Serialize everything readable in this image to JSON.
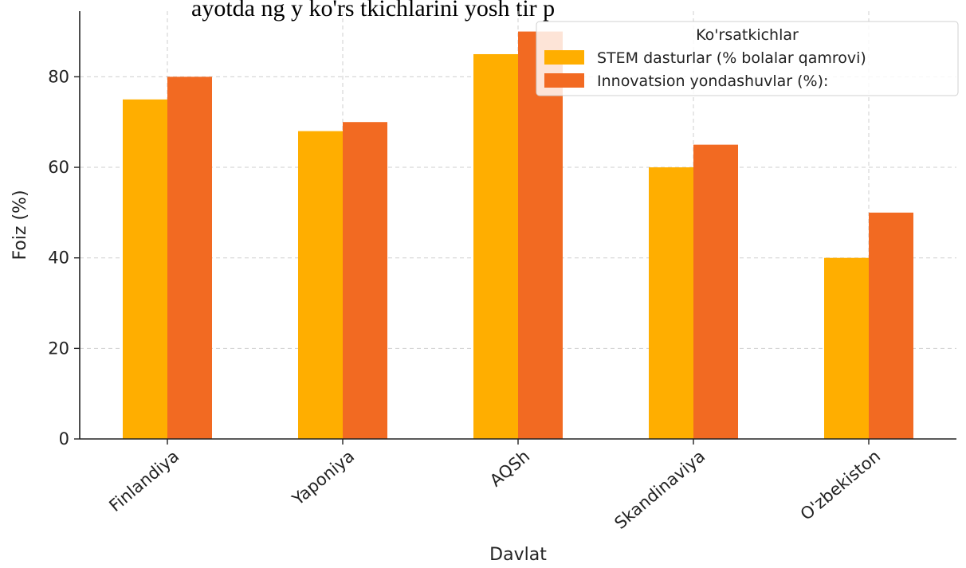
{
  "header": {
    "clipped_title": "ayotda ng y ko'rs tkichlarini yosh tir p"
  },
  "chart_data": {
    "type": "bar",
    "xlabel": "Davlat",
    "ylabel": "Foiz (%)",
    "categories": [
      "Finlandiya",
      "Yaponiya",
      "AQSh",
      "Skandinaviya",
      "O'zbekiston"
    ],
    "series": [
      {
        "name": "STEM dasturlar (% bolalar qamrovi)",
        "values": [
          75,
          68,
          85,
          60,
          40
        ],
        "color": "#FFAE00"
      },
      {
        "name": "Innovatsion yondashuvlar (%):",
        "values": [
          80,
          70,
          90,
          65,
          50
        ],
        "color": "#F26A22"
      }
    ],
    "ylim": [
      0,
      94.5
    ],
    "yticks": [
      0,
      20,
      40,
      60,
      80
    ],
    "grid": true,
    "legend": {
      "title": "Ko'rsatkichlar",
      "placement": "top-right"
    }
  }
}
